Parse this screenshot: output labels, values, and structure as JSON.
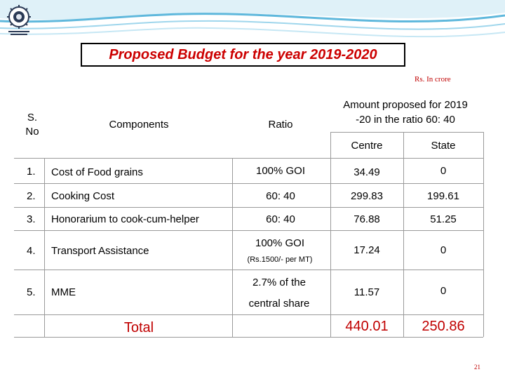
{
  "title": "Proposed Budget for the year 2019-2020",
  "units": "Rs. In crore",
  "headers": {
    "sno": [
      "S.",
      "No"
    ],
    "components": "Components",
    "ratio": "Ratio",
    "amount": [
      "Amount proposed for  2019",
      "-20 in the ratio 60: 40"
    ],
    "centre": "Centre",
    "state": "State"
  },
  "rows": [
    {
      "sno": "1.",
      "component": "Cost of Food grains",
      "ratio": "100% GOI",
      "centre": "34.49",
      "state": "0"
    },
    {
      "sno": "2.",
      "component": "Cooking Cost",
      "ratio": "60: 40",
      "centre": "299.83",
      "state": "199.61"
    },
    {
      "sno": "3.",
      "component": "Honorarium to cook-cum-helper",
      "ratio": "60: 40",
      "centre": "76.88",
      "state": "51.25"
    },
    {
      "sno": "4.",
      "component": "Transport Assistance",
      "ratio": "100% GOI",
      "ratio_note": "(Rs.1500/- per MT)",
      "centre": "17.24",
      "state": "0"
    },
    {
      "sno": "5.",
      "component": "MME",
      "ratio": "2.7% of the",
      "ratio_line2": "central share",
      "centre": "11.57",
      "state": "0"
    }
  ],
  "total": {
    "label": "Total",
    "centre": "440.01",
    "state": "250.86"
  },
  "page_number": "21",
  "colors": {
    "title": "#cc0000",
    "accent_red": "#c00000",
    "grid": "#9a9a9a"
  }
}
